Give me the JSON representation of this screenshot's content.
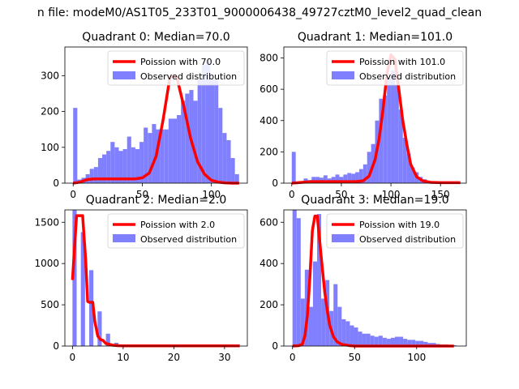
{
  "suptitle": "n file: modeM0/AS1T05_233T01_9000006438_49727cztM0_level2_quad_clean",
  "chart_data": [
    {
      "type": "bar",
      "title": "Quadrant 0: Median=70.0",
      "xlabel": "",
      "ylabel": "",
      "xlim": [
        -6,
        126
      ],
      "ylim": [
        0,
        380
      ],
      "xticks": [
        0,
        50,
        100
      ],
      "yticks": [
        0,
        100,
        200,
        300
      ],
      "hist": {
        "name": "Observed distribution",
        "color": "#8080ff",
        "bins": [
          0,
          3,
          6,
          9,
          12,
          15,
          18,
          21,
          24,
          27,
          30,
          33,
          36,
          39,
          42,
          45,
          48,
          51,
          54,
          57,
          60,
          63,
          66,
          69,
          72,
          75,
          78,
          81,
          84,
          87,
          90,
          93,
          96,
          99,
          102,
          105,
          108,
          111,
          114,
          117,
          120
        ],
        "counts": [
          210,
          10,
          15,
          25,
          40,
          45,
          70,
          80,
          90,
          115,
          100,
          90,
          95,
          130,
          100,
          95,
          115,
          155,
          140,
          165,
          150,
          150,
          150,
          180,
          180,
          190,
          230,
          250,
          260,
          230,
          290,
          330,
          340,
          290,
          290,
          210,
          140,
          120,
          70,
          25
        ]
      },
      "line": {
        "name": "Poission with 70.0",
        "color": "#ff0000",
        "x": [
          0,
          5,
          10,
          15,
          20,
          25,
          30,
          35,
          40,
          45,
          50,
          55,
          60,
          65,
          70,
          72,
          75,
          80,
          85,
          90,
          95,
          100,
          105,
          110,
          115,
          120
        ],
        "y": [
          0,
          3,
          10,
          12,
          12,
          12,
          12,
          12,
          12,
          12,
          15,
          28,
          75,
          175,
          295,
          300,
          295,
          215,
          125,
          60,
          25,
          8,
          3,
          1,
          0,
          0
        ]
      }
    },
    {
      "type": "bar",
      "title": "Quadrant 1: Median=101.0",
      "xlabel": "",
      "ylabel": "",
      "xlim": [
        -8,
        176
      ],
      "ylim": [
        0,
        870
      ],
      "xticks": [
        0,
        50,
        100,
        150
      ],
      "yticks": [
        0,
        200,
        400,
        600,
        800
      ],
      "hist": {
        "name": "Observed distribution",
        "color": "#8080ff",
        "bins": [
          0,
          4,
          8,
          12,
          16,
          20,
          24,
          28,
          32,
          36,
          40,
          44,
          48,
          52,
          56,
          60,
          64,
          68,
          72,
          76,
          80,
          84,
          88,
          92,
          96,
          100,
          104,
          108,
          112,
          116,
          120,
          124,
          128,
          132,
          136,
          140,
          144,
          148,
          152,
          156,
          160,
          164,
          168
        ],
        "counts": [
          200,
          10,
          10,
          30,
          20,
          40,
          40,
          35,
          50,
          30,
          40,
          55,
          40,
          55,
          65,
          60,
          70,
          90,
          120,
          200,
          250,
          400,
          540,
          560,
          670,
          720,
          630,
          470,
          290,
          190,
          100,
          70,
          40,
          25,
          10,
          5,
          5,
          3,
          2,
          1,
          0,
          0
        ]
      },
      "line": {
        "name": "Poission with 101.0",
        "color": "#ff0000",
        "x": [
          0,
          20,
          40,
          55,
          65,
          72,
          78,
          84,
          88,
          92,
          96,
          100,
          104,
          108,
          112,
          116,
          120,
          126,
          132,
          140,
          150,
          170
        ],
        "y": [
          0,
          10,
          10,
          10,
          10,
          15,
          45,
          150,
          280,
          470,
          700,
          820,
          790,
          600,
          400,
          250,
          120,
          40,
          15,
          5,
          3,
          3
        ]
      }
    },
    {
      "type": "bar",
      "title": "Quadrant 2: Median=2.0",
      "xlabel": "",
      "ylabel": "",
      "xlim": [
        -1.5,
        34.5
      ],
      "ylim": [
        0,
        1650
      ],
      "xticks": [
        0,
        10,
        20,
        30
      ],
      "yticks": [
        0,
        500,
        1000,
        1500
      ],
      "hist": {
        "name": "Observed distribution",
        "color": "#8080ff",
        "bins": [
          0,
          0.825,
          1.65,
          2.475,
          3.3,
          4.125,
          4.95,
          5.775,
          6.6,
          7.425,
          8.25,
          9.075,
          9.9,
          10.725,
          11.55,
          12.375,
          13.2
        ],
        "counts": [
          1650,
          0,
          1380,
          0,
          920,
          0,
          420,
          0,
          150,
          0,
          40,
          0,
          15,
          0,
          5,
          0
        ]
      },
      "line": {
        "name": "Poission with 2.0",
        "color": "#ff0000",
        "x": [
          0,
          0.8,
          1.2,
          2,
          2.6,
          3,
          3.3,
          4,
          4.4,
          5,
          5.5,
          6,
          6.6,
          7,
          8,
          9,
          10,
          12,
          15,
          20,
          33
        ],
        "y": [
          800,
          1580,
          1580,
          1580,
          1050,
          540,
          530,
          530,
          300,
          120,
          80,
          70,
          30,
          25,
          10,
          5,
          3,
          2,
          2,
          2,
          2
        ]
      }
    },
    {
      "type": "bar",
      "title": "Quadrant 3: Median=19.0",
      "xlabel": "",
      "ylabel": "",
      "xlim": [
        -7,
        140
      ],
      "ylim": [
        0,
        660
      ],
      "xticks": [
        0,
        50,
        100
      ],
      "yticks": [
        0,
        200,
        400,
        600
      ],
      "hist": {
        "name": "Observed distribution",
        "color": "#8080ff",
        "bins": [
          0,
          3.3,
          6.6,
          9.9,
          13.2,
          16.5,
          19.8,
          23.1,
          26.4,
          29.7,
          33,
          36.3,
          39.6,
          42.9,
          46.2,
          49.5,
          52.8,
          56.1,
          59.4,
          62.7,
          66,
          69.3,
          72.6,
          75.9,
          79.2,
          82.5,
          85.8,
          89.1,
          92.4,
          95.7,
          99,
          102.3,
          105.6,
          108.9,
          112.2,
          115.5,
          118.8,
          122.1,
          125.4,
          128.7,
          132
        ],
        "counts": [
          660,
          620,
          230,
          370,
          190,
          410,
          640,
          230,
          320,
          170,
          300,
          190,
          130,
          120,
          100,
          90,
          70,
          60,
          60,
          50,
          45,
          50,
          40,
          35,
          40,
          45,
          45,
          35,
          30,
          30,
          25,
          25,
          20,
          15,
          15,
          10,
          8,
          8,
          6,
          4
        ]
      },
      "line": {
        "name": "Poission with 19.0",
        "color": "#ff0000",
        "x": [
          0,
          5,
          8,
          10,
          12,
          14,
          16,
          18,
          20,
          22,
          24,
          26,
          28,
          30,
          33,
          36,
          40,
          45,
          50,
          60,
          80,
          130
        ],
        "y": [
          0,
          2,
          10,
          50,
          150,
          330,
          560,
          630,
          630,
          500,
          380,
          260,
          170,
          100,
          45,
          20,
          8,
          3,
          0,
          0,
          0,
          0
        ]
      }
    }
  ]
}
